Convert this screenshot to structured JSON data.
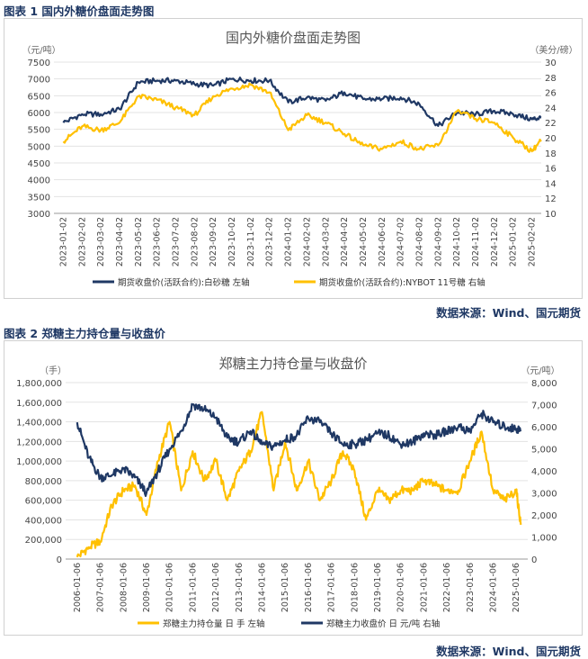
{
  "figure1": {
    "caption": "图表 1  国内外糖价盘面走势图",
    "source": "数据来源：Wind、国元期货",
    "chart_data": {
      "type": "line",
      "title": "国内外糖价盘面走势图",
      "left_unit": "（元/吨）",
      "right_unit": "（美分/磅）",
      "left_ylim": [
        3000,
        7500
      ],
      "left_ticks": [
        "3000",
        "3500",
        "4000",
        "4500",
        "5000",
        "5500",
        "6000",
        "6500",
        "7000",
        "7500"
      ],
      "right_ylim": [
        10,
        30
      ],
      "right_ticks": [
        "10",
        "12",
        "14",
        "16",
        "18",
        "20",
        "22",
        "24",
        "26",
        "28",
        "30"
      ],
      "x_ticks": [
        "2023-01-02",
        "2023-02-02",
        "2023-03-02",
        "2023-04-02",
        "2023-05-02",
        "2023-06-02",
        "2023-07-02",
        "2023-08-02",
        "2023-09-02",
        "2023-10-02",
        "2023-11-02",
        "2023-12-02",
        "2024-01-02",
        "2024-02-02",
        "2024-03-02",
        "2024-04-02",
        "2024-05-02",
        "2024-06-02",
        "2024-07-02",
        "2024-08-02",
        "2024-09-02",
        "2024-10-02",
        "2024-11-02",
        "2024-12-02",
        "2025-01-02",
        "2025-02-02"
      ],
      "series": [
        {
          "name": "期货收盘价(活跃合约):白砂糖  左轴",
          "axis": "left",
          "color": "#1f3864",
          "x": [
            0,
            1,
            2,
            3,
            4,
            5,
            6,
            7,
            8,
            9,
            10,
            11,
            12,
            13,
            14,
            15,
            16,
            17,
            18,
            19,
            20,
            21,
            22,
            23,
            24,
            25,
            25.5
          ],
          "values": [
            5700,
            5950,
            5950,
            6100,
            6900,
            6950,
            6950,
            6850,
            6800,
            7000,
            6950,
            6950,
            6300,
            6450,
            6350,
            6600,
            6400,
            6400,
            6450,
            6250,
            5600,
            6000,
            5950,
            6050,
            5950,
            5800,
            5850
          ]
        },
        {
          "name": "期货收盘价(活跃合约):NYBOT 11号糖  右轴",
          "axis": "right",
          "color": "#ffc000",
          "x": [
            0,
            1,
            2,
            3,
            4,
            5,
            6,
            7,
            8,
            9,
            10,
            11,
            12,
            13,
            14,
            15,
            16,
            17,
            18,
            19,
            20,
            21,
            22,
            23,
            24,
            25,
            25.5
          ],
          "values": [
            19.5,
            21.5,
            21.0,
            22.0,
            25.5,
            25.0,
            24.0,
            23.0,
            25.5,
            26.5,
            27.0,
            26.0,
            21.0,
            23.0,
            22.0,
            20.5,
            19.0,
            18.5,
            19.5,
            18.5,
            19.0,
            23.5,
            22.5,
            22.0,
            20.0,
            18.2,
            19.7
          ]
        }
      ],
      "grid": true,
      "legend_position": "bottom"
    }
  },
  "figure2": {
    "caption": "图表 2  郑糖主力持仓量与收盘价",
    "source": "数据来源：Wind、国元期货",
    "chart_data": {
      "type": "line",
      "title": "郑糖主力持仓量与收盘价",
      "left_unit": "（手）",
      "right_unit": "（元/吨）",
      "left_ylim": [
        0,
        1800000
      ],
      "left_ticks": [
        "0",
        "200,000",
        "400,000",
        "600,000",
        "800,000",
        "1,000,000",
        "1,200,000",
        "1,400,000",
        "1,600,000",
        "1,800,000"
      ],
      "right_ylim": [
        0,
        8000
      ],
      "right_ticks": [
        "0",
        "1,000",
        "2,000",
        "3,000",
        "4,000",
        "5,000",
        "6,000",
        "7,000",
        "8,000"
      ],
      "x_ticks": [
        "2006-01-06",
        "2007-01-06",
        "2008-01-06",
        "2009-01-06",
        "2010-01-06",
        "2011-01-06",
        "2012-01-06",
        "2013-01-06",
        "2014-01-06",
        "2015-01-06",
        "2016-01-06",
        "2017-01-06",
        "2018-01-06",
        "2019-01-06",
        "2020-01-06",
        "2021-01-06",
        "2022-01-06",
        "2023-01-06",
        "2024-01-06",
        "2025-01-06"
      ],
      "series": [
        {
          "name": "郑糖主力持仓量 日 手  左轴",
          "axis": "left",
          "color": "#ffc000",
          "x": [
            0,
            0.5,
            1,
            1.5,
            2,
            2.5,
            3,
            3.5,
            4,
            4.5,
            5,
            5.5,
            6,
            6.5,
            7,
            7.5,
            8,
            8.5,
            9,
            9.5,
            10,
            10.5,
            11,
            11.5,
            12,
            12.5,
            13,
            13.5,
            14,
            14.5,
            15,
            15.5,
            16,
            16.5,
            17,
            17.5,
            18,
            18.5,
            19,
            19.2
          ],
          "values": [
            20000,
            120000,
            180000,
            550000,
            700000,
            750000,
            450000,
            1000000,
            1400000,
            700000,
            1100000,
            800000,
            1000000,
            600000,
            900000,
            1100000,
            1500000,
            700000,
            1200000,
            700000,
            1000000,
            600000,
            800000,
            1100000,
            900000,
            400000,
            700000,
            600000,
            700000,
            700000,
            800000,
            750000,
            700000,
            700000,
            1000000,
            1300000,
            700000,
            600000,
            700000,
            350000
          ]
        },
        {
          "name": "郑糖主力收盘价 日 元/吨  右轴",
          "axis": "right",
          "color": "#1f3864",
          "x": [
            0,
            0.5,
            1,
            1.5,
            2,
            2.5,
            3,
            3.5,
            4,
            4.5,
            5,
            5.5,
            6,
            6.5,
            7,
            7.5,
            8,
            8.5,
            9,
            9.5,
            10,
            10.5,
            11,
            11.5,
            12,
            12.5,
            13,
            13.5,
            14,
            14.5,
            15,
            15.5,
            16,
            16.5,
            17,
            17.5,
            18,
            18.5,
            19,
            19.2
          ],
          "values": [
            6200,
            4600,
            3700,
            3800,
            4100,
            3700,
            3000,
            4000,
            5000,
            5800,
            7000,
            6800,
            6400,
            5500,
            5300,
            5800,
            5200,
            5100,
            5400,
            5600,
            6400,
            6200,
            5700,
            5200,
            5200,
            5400,
            5700,
            5600,
            5200,
            5300,
            5700,
            5600,
            5800,
            6000,
            5800,
            6600,
            6200,
            6000,
            5900,
            5850
          ]
        }
      ],
      "grid": true,
      "legend_position": "bottom"
    }
  }
}
